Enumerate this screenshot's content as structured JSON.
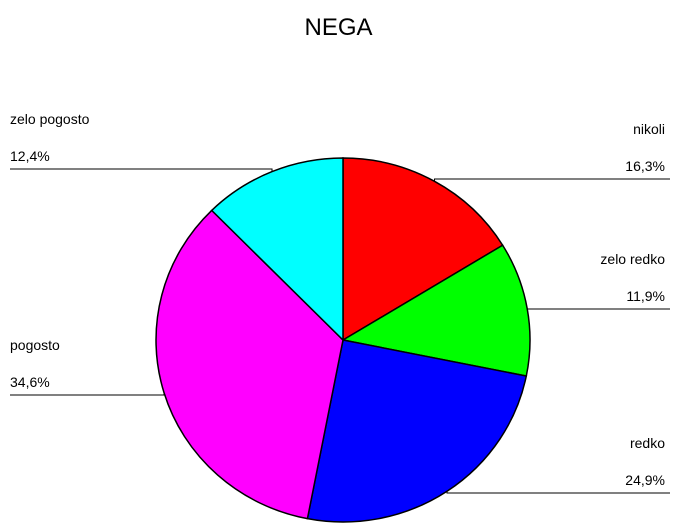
{
  "chart_data": {
    "type": "pie",
    "title": "NEGA",
    "slices": [
      {
        "label": "nikoli",
        "value": 16.3,
        "value_text": "16,3%",
        "color": "#ff0000"
      },
      {
        "label": "zelo redko",
        "value": 11.9,
        "value_text": "11,9%",
        "color": "#00ff00"
      },
      {
        "label": "redko",
        "value": 24.9,
        "value_text": "24,9%",
        "color": "#0000ff"
      },
      {
        "label": "pogosto",
        "value": 34.6,
        "value_text": "34,6%",
        "color": "#ff00ff"
      },
      {
        "label": "zelo pogosto",
        "value": 12.4,
        "value_text": "12,4%",
        "color": "#00ffff"
      }
    ],
    "legend": "none"
  }
}
